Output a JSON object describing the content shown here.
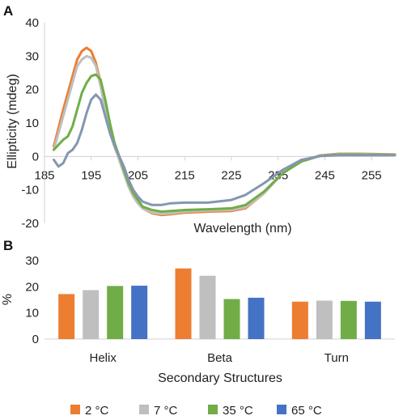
{
  "chart_data": [
    {
      "panel_label": "A",
      "type": "line",
      "xlabel": "Wavelength (nm)",
      "ylabel": "Ellipticity (mdeg)",
      "xlim": [
        185,
        260
      ],
      "ylim": [
        -20,
        40
      ],
      "x_ticks": [
        185,
        195,
        205,
        215,
        225,
        235,
        245,
        255
      ],
      "y_ticks": [
        -20,
        -10,
        0,
        10,
        20,
        30,
        40
      ],
      "grid": false,
      "series": [
        {
          "name": "2 °C",
          "color": "#ED7D31",
          "x": [
            187,
            189,
            191,
            192,
            193,
            194,
            195,
            196,
            197,
            198,
            199,
            200,
            201,
            202,
            203,
            204,
            205,
            206,
            208,
            210,
            212,
            215,
            220,
            225,
            228,
            232,
            236,
            240,
            244,
            248,
            252,
            256,
            260
          ],
          "y": [
            3,
            14,
            24,
            29,
            31.5,
            32.5,
            31.5,
            28,
            22,
            14,
            8,
            3,
            -1,
            -5,
            -9,
            -12,
            -14,
            -15.5,
            -17,
            -17.5,
            -17.3,
            -16.8,
            -16.5,
            -16.3,
            -15.5,
            -11,
            -5,
            -1.5,
            0.3,
            0.8,
            0.8,
            0.7,
            0.6
          ]
        },
        {
          "name": "7 °C",
          "color": "#BFBFBF",
          "x": [
            187,
            189,
            191,
            192,
            193,
            194,
            195,
            196,
            197,
            198,
            199,
            200,
            201,
            202,
            203,
            204,
            205,
            206,
            208,
            210,
            212,
            215,
            220,
            225,
            228,
            232,
            236,
            240,
            244,
            248,
            252,
            256,
            260
          ],
          "y": [
            2,
            12,
            22,
            27,
            29,
            30,
            29.5,
            27,
            21,
            14,
            8,
            3,
            -1,
            -5,
            -9,
            -12,
            -14,
            -15.5,
            -16.8,
            -17.2,
            -17,
            -16.5,
            -16.2,
            -16,
            -15.2,
            -11,
            -5,
            -1.5,
            0.2,
            0.7,
            0.7,
            0.6,
            0.5
          ]
        },
        {
          "name": "35 °C",
          "color": "#70AD47",
          "x": [
            187,
            189,
            190,
            191,
            192,
            193,
            194,
            195,
            196,
            197,
            198,
            199,
            200,
            201,
            202,
            203,
            204,
            205,
            206,
            208,
            210,
            212,
            215,
            220,
            225,
            228,
            232,
            236,
            240,
            244,
            248,
            252,
            256,
            260
          ],
          "y": [
            2,
            5,
            6,
            9,
            14,
            19,
            22,
            24,
            24.5,
            23,
            17,
            10,
            4,
            0,
            -4,
            -8,
            -11,
            -13,
            -15,
            -16,
            -16.5,
            -16.3,
            -16,
            -15.8,
            -15.5,
            -14.5,
            -10.5,
            -5,
            -1.5,
            0.2,
            0.6,
            0.6,
            0.5,
            0.5
          ]
        },
        {
          "name": "65 °C",
          "color": "#8497B0",
          "x": [
            187,
            188,
            189,
            190,
            191,
            192,
            193,
            194,
            195,
            196,
            197,
            198,
            199,
            200,
            201,
            202,
            203,
            204,
            205,
            206,
            208,
            210,
            212,
            215,
            220,
            225,
            228,
            232,
            236,
            240,
            244,
            248,
            252,
            256,
            260
          ],
          "y": [
            -1,
            -3,
            -2,
            1,
            2,
            4,
            8,
            13,
            17,
            18.5,
            17,
            12,
            7,
            3,
            0,
            -3,
            -7,
            -10,
            -12,
            -13.5,
            -14.5,
            -14.5,
            -14,
            -13.8,
            -13.8,
            -13,
            -11.5,
            -8,
            -4,
            -1,
            0.1,
            0.4,
            0.4,
            0.4,
            0.4
          ]
        }
      ]
    },
    {
      "panel_label": "B",
      "type": "bar",
      "xlabel": "Secondary Structures",
      "ylabel": "%",
      "categories": [
        "Helix",
        "Beta",
        "Turn"
      ],
      "ylim": [
        0,
        30
      ],
      "y_ticks": [
        0,
        10,
        20,
        30
      ],
      "grid": false,
      "legend_position": "bottom",
      "series": [
        {
          "name": "2 °C",
          "color": "#ED7D31",
          "values": [
            17.2,
            27,
            14.3
          ]
        },
        {
          "name": "7 °C",
          "color": "#BFBFBF",
          "values": [
            18.7,
            24.2,
            14.7
          ]
        },
        {
          "name": "35 °C",
          "color": "#70AD47",
          "values": [
            20.3,
            15.3,
            14.6
          ]
        },
        {
          "name": "65 °C",
          "color": "#4472C4",
          "values": [
            20.4,
            15.8,
            14.3
          ]
        }
      ]
    }
  ]
}
